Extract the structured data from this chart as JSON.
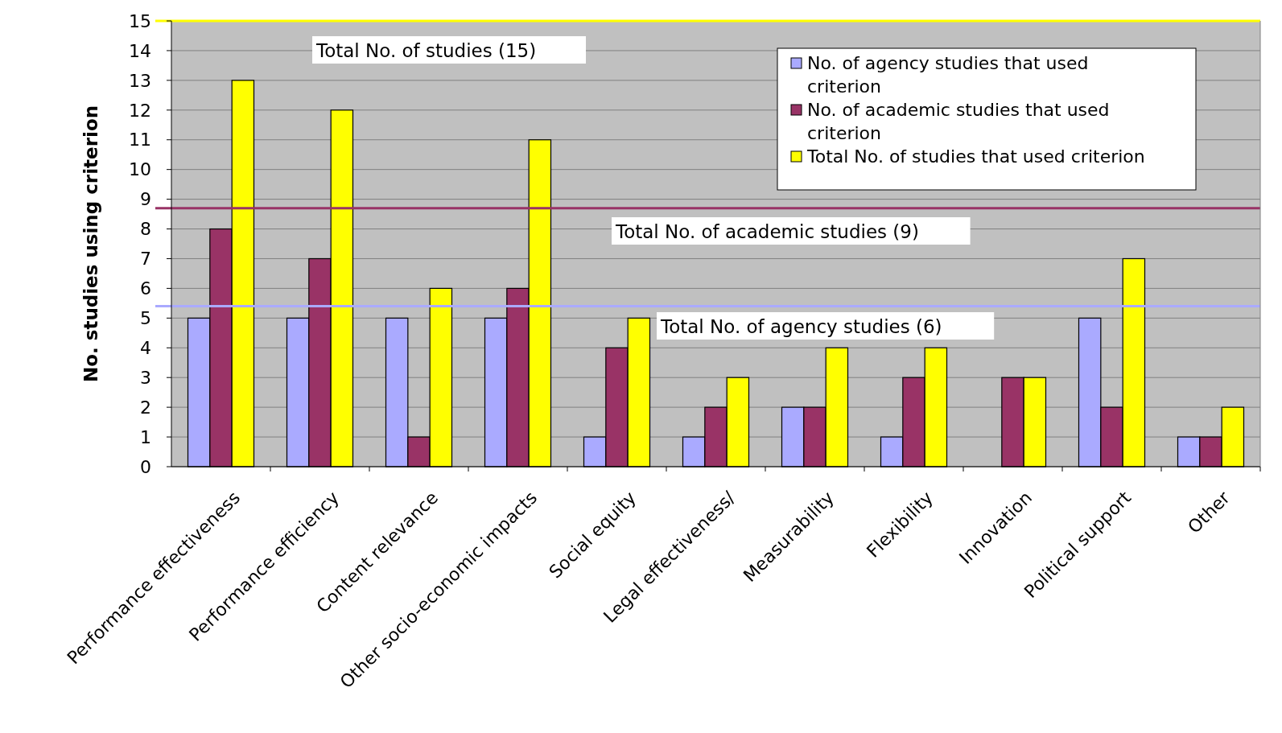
{
  "chart_data": {
    "type": "bar",
    "ylabel": "No. studies using criterion",
    "categories": [
      "Performance effectiveness",
      "Performance efficiency",
      "Content relevance",
      "Other socio-economic impacts",
      "Social equity",
      "Legal effectiveness/",
      "Measurability",
      "Flexibility",
      "Innovation",
      "Political support",
      "Other"
    ],
    "series": [
      {
        "name": "No. of agency studies that used criterion",
        "color": "#aaaaff",
        "values": [
          5,
          5,
          5,
          5,
          1,
          1,
          2,
          1,
          0,
          5,
          1
        ]
      },
      {
        "name": "No. of academic studies that used criterion",
        "color": "#993366",
        "values": [
          8,
          7,
          1,
          6,
          4,
          2,
          2,
          3,
          3,
          2,
          1
        ]
      },
      {
        "name": "Total No. of studies that used criterion",
        "color": "#ffff00",
        "values": [
          13,
          12,
          6,
          11,
          5,
          3,
          4,
          4,
          3,
          7,
          2
        ]
      }
    ],
    "ylim": [
      0,
      15
    ],
    "yticks": [
      0,
      1,
      2,
      3,
      4,
      5,
      6,
      7,
      8,
      9,
      10,
      11,
      12,
      13,
      14,
      15
    ],
    "grid": "y",
    "legend": "top right",
    "ref_lines": [
      {
        "axis": "y",
        "value": 15,
        "label": "Total No. of studies (15)",
        "color": "#ffff00"
      },
      {
        "axis": "y",
        "value": 8.7,
        "label": "Total No. of academic studies (9)",
        "color": "#993366"
      },
      {
        "axis": "y",
        "value": 5.4,
        "label": "Total No. of agency studies (6)",
        "color": "#aaaaff"
      }
    ]
  }
}
